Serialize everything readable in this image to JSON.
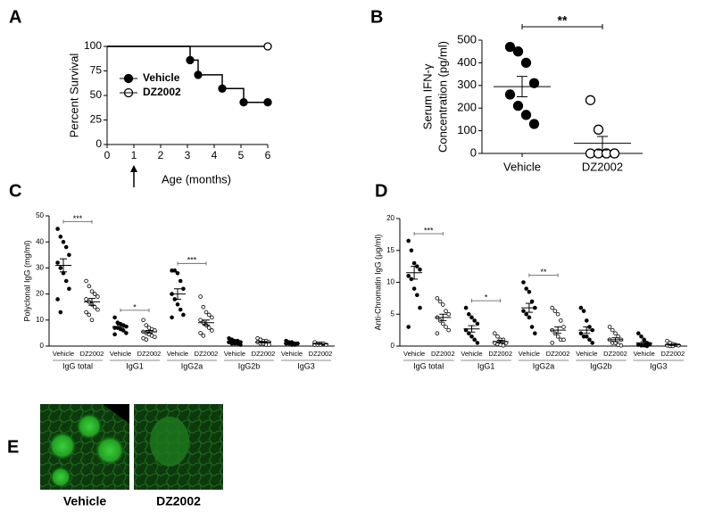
{
  "chart_data": [
    {
      "type": "line",
      "panel": "A",
      "step": true,
      "xlabel": "Age (months)",
      "ylabel": "Percent Survival",
      "xlim": [
        0,
        6
      ],
      "ylim": [
        0,
        100
      ],
      "xticks": [
        0,
        1,
        2,
        3,
        4,
        5,
        6
      ],
      "yticks": [
        0,
        25,
        50,
        75,
        100
      ],
      "arrow_at": 1,
      "series": [
        {
          "name": "Vehicle",
          "color": "#000000",
          "filled": true,
          "x": [
            0,
            3.1,
            3.4,
            4.3,
            5.1,
            6
          ],
          "values": [
            100,
            86,
            71,
            57,
            43,
            43
          ]
        },
        {
          "name": "DZ2002",
          "color": "#000000",
          "filled": false,
          "x": [
            0,
            6
          ],
          "values": [
            100,
            100
          ]
        }
      ]
    },
    {
      "type": "dotplot",
      "panel": "B",
      "ylabel": [
        "Serum IFN-γ",
        "Concentration (pg/ml)"
      ],
      "ylim": [
        0,
        500
      ],
      "yticks": [
        0,
        100,
        200,
        300,
        400,
        500
      ],
      "significance": "**",
      "series": [
        {
          "name": "Vehicle",
          "filled": true,
          "values": [
            470,
            450,
            400,
            310,
            260,
            210,
            170,
            130
          ],
          "mean": 295,
          "error": 45
        },
        {
          "name": "DZ2002",
          "filled": false,
          "values": [
            235,
            105,
            0,
            0,
            0,
            0,
            0,
            0
          ],
          "mean": 45,
          "error": 30
        }
      ]
    },
    {
      "type": "grouped-dotplot",
      "panel": "C",
      "ylabel": "Polyclonal IgG (mg/ml)",
      "ylim": [
        0,
        50
      ],
      "yticks": [
        0,
        10,
        20,
        30,
        40,
        50
      ],
      "groups": [
        "IgG total",
        "IgG1",
        "IgG2a",
        "IgG2b",
        "IgG3"
      ],
      "significance": [
        "***",
        "*",
        "***",
        null,
        null
      ],
      "series": [
        {
          "name": "Vehicle",
          "filled": true,
          "values": [
            [
              45,
              42,
              40,
              38,
              35,
              32,
              30,
              28,
              25,
              22,
              18,
              13
            ],
            [
              11,
              9,
              8.5,
              8,
              7.5,
              7,
              7,
              6.5,
              6,
              5,
              4.5
            ],
            [
              29,
              29,
              28,
              25,
              22,
              20,
              18,
              16,
              14,
              12,
              11
            ],
            [
              3,
              2.5,
              2,
              2,
              1.5,
              1.5,
              1,
              1,
              1,
              0.5
            ],
            [
              2,
              1.5,
              1.5,
              1,
              1,
              1,
              1,
              0.5,
              0.5
            ]
          ],
          "means": [
            31,
            7.5,
            20,
            1.6,
            1
          ],
          "errors": [
            2.5,
            0.6,
            2,
            0.3,
            0.2
          ]
        },
        {
          "name": "DZ2002",
          "filled": false,
          "values": [
            [
              25,
              23,
              21,
              20,
              19,
              18,
              17,
              16,
              15,
              14,
              13,
              12,
              10
            ],
            [
              10,
              8,
              7,
              6.5,
              6,
              5.5,
              5,
              4.5,
              4,
              3.5,
              3,
              2.5
            ],
            [
              19,
              15,
              13,
              12,
              11,
              10,
              9,
              8,
              7,
              6,
              5,
              4
            ],
            [
              3,
              2.5,
              2,
              2,
              1.5,
              1.5,
              1,
              1,
              0.5,
              0.5
            ],
            [
              1.5,
              1,
              1,
              1,
              0.5,
              0.5,
              0.5,
              0.5
            ]
          ],
          "means": [
            17,
            5.5,
            9,
            1.5,
            0.8
          ],
          "errors": [
            1.3,
            0.5,
            1,
            0.3,
            0.1
          ]
        }
      ]
    },
    {
      "type": "grouped-dotplot",
      "panel": "D",
      "ylabel": "Anti-Chromatin IgG (μg/ml)",
      "ylim": [
        0,
        20
      ],
      "yticks": [
        0,
        5,
        10,
        15,
        20
      ],
      "groups": [
        "IgG total",
        "IgG1",
        "IgG2a",
        "IgG2b",
        "IgG3"
      ],
      "significance": [
        "***",
        "*",
        "**",
        null,
        null
      ],
      "series": [
        {
          "name": "Vehicle",
          "filled": true,
          "values": [
            [
              16.5,
              15,
              13,
              12.5,
              12,
              11,
              10.5,
              9,
              8,
              6,
              3
            ],
            [
              6,
              5,
              4.5,
              4,
              3.5,
              2.5,
              2,
              1.5,
              1,
              0.5
            ],
            [
              10,
              9,
              8.5,
              7,
              6,
              5.5,
              5,
              4.5,
              3,
              2
            ],
            [
              6,
              5.5,
              4,
              3,
              2.5,
              2,
              1.5,
              1.5,
              1,
              0.5
            ],
            [
              2,
              1.5,
              1,
              0.5,
              0.3,
              0.2,
              0.1,
              0.1,
              0
            ]
          ],
          "means": [
            11.5,
            2.7,
            6,
            2.5,
            0.5
          ],
          "errors": [
            1,
            0.5,
            0.7,
            0.5,
            0.2
          ]
        },
        {
          "name": "DZ2002",
          "filled": false,
          "values": [
            [
              7.5,
              7,
              6.5,
              5.5,
              5,
              4.5,
              4,
              3.5,
              3,
              2.5,
              2
            ],
            [
              2,
              1.5,
              1,
              1,
              0.5,
              0.5,
              0.3,
              0.2,
              0.1
            ],
            [
              6,
              5.5,
              5,
              4,
              3,
              2.5,
              2,
              1.5,
              1,
              1,
              0.5
            ],
            [
              3,
              2.5,
              2,
              1.5,
              1,
              1,
              0.5,
              0.5,
              0.2,
              0.1
            ],
            [
              0.8,
              0.5,
              0.3,
              0.2,
              0.1,
              0.1,
              0,
              0
            ]
          ],
          "means": [
            4.5,
            0.7,
            2.5,
            1,
            0.2
          ],
          "errors": [
            0.5,
            0.2,
            0.5,
            0.3,
            0.1
          ]
        }
      ]
    }
  ],
  "figure_e": {
    "panel": "E",
    "labels": [
      "Vehicle",
      "DZ2002"
    ]
  }
}
